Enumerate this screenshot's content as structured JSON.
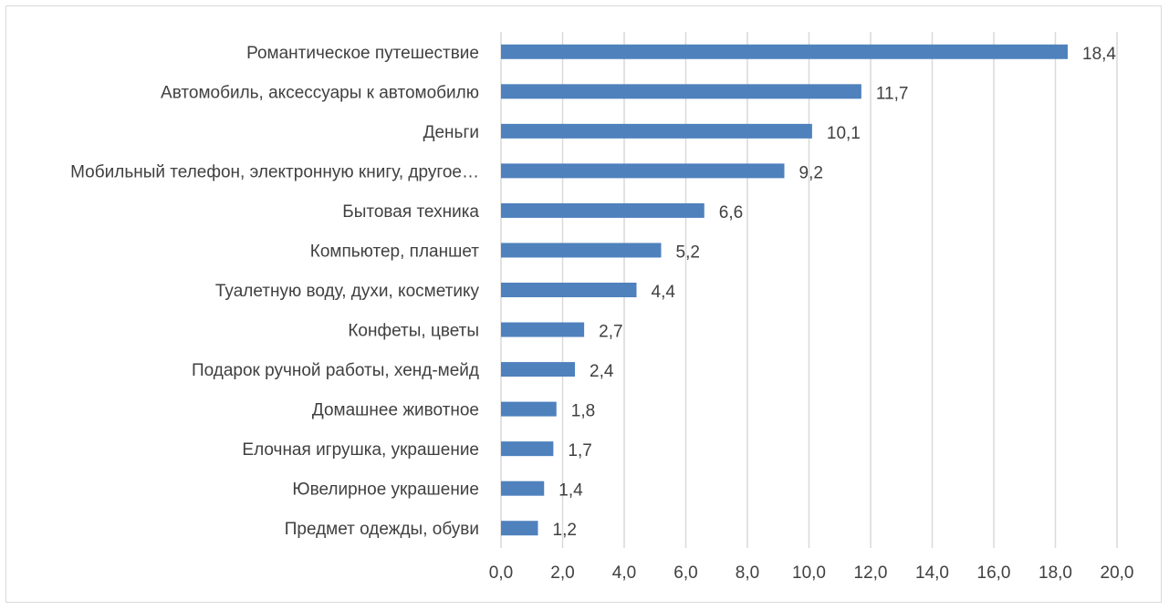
{
  "chart_data": {
    "type": "bar",
    "orientation": "horizontal",
    "categories": [
      "Романтическое путешествие",
      "Автомобиль, аксессуары к автомобилю",
      "Деньги",
      "Мобильный телефон, электронную книгу, другое…",
      "Бытовая техника",
      "Компьютер, планшет",
      "Туалетную воду, духи, косметику",
      "Конфеты, цветы",
      "Подарок ручной работы, хенд-мейд",
      "Домашнее животное",
      "Елочная игрушка, украшение",
      "Ювелирное украшение",
      "Предмет одежды, обуви"
    ],
    "values": [
      18.4,
      11.7,
      10.1,
      9.2,
      6.6,
      5.2,
      4.4,
      2.7,
      2.4,
      1.8,
      1.7,
      1.4,
      1.2
    ],
    "data_labels": [
      "18,4",
      "11,7",
      "10,1",
      "9,2",
      "6,6",
      "5,2",
      "4,4",
      "2,7",
      "2,4",
      "1,8",
      "1,7",
      "1,4",
      "1,2"
    ],
    "xlim": [
      0,
      20
    ],
    "x_ticks": [
      "0,0",
      "2,0",
      "4,0",
      "6,0",
      "8,0",
      "10,0",
      "12,0",
      "14,0",
      "16,0",
      "18,0",
      "20,0"
    ],
    "bar_color": "#4f81bd",
    "grid": "vertical",
    "title": "",
    "xlabel": "",
    "ylabel": ""
  }
}
